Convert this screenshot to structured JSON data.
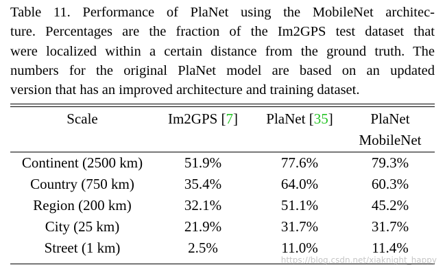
{
  "caption": {
    "lines": [
      "Table 11. Performance of PlaNet using the MobileNet architec-",
      "ture. Percentages are the fraction of the Im2GPS test dataset that",
      "were localized within a certain distance from the ground truth. The",
      "numbers for the original PlaNet model are based on an updated",
      "version that has an improved architecture and training dataset."
    ]
  },
  "table": {
    "header": [
      [
        [
          "Scale"
        ]
      ],
      [
        [
          "Im2GPS [",
          "7",
          "]"
        ]
      ],
      [
        [
          "PlaNet [",
          "35",
          "]"
        ]
      ],
      [
        [
          "PlaNet"
        ],
        [
          "MobileNet"
        ]
      ]
    ],
    "rows": [
      [
        "Continent (2500 km)",
        "51.9%",
        "77.6%",
        "79.3%"
      ],
      [
        "Country (750 km)",
        "35.4%",
        "64.0%",
        "60.3%"
      ],
      [
        "Region (200 km)",
        "32.1%",
        "51.1%",
        "45.2%"
      ],
      [
        "City (25 km)",
        "21.9%",
        "31.7%",
        "31.7%"
      ],
      [
        "Street (1 km)",
        "2.5%",
        "11.0%",
        "11.4%"
      ]
    ]
  },
  "watermark": "https://blog.csdn.net/xiaknight_happy"
}
